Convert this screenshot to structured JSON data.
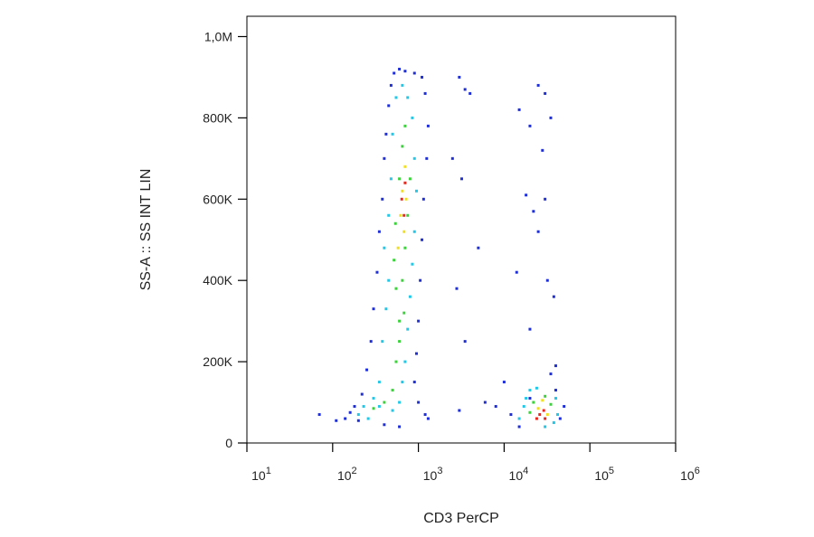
{
  "chart_data": {
    "type": "scatter",
    "xlabel": "CD3 PerCP",
    "ylabel": "SS-A :: SS INT LIN",
    "xscale": "log",
    "xlim": [
      10,
      1000000
    ],
    "ylim": [
      0,
      1050000
    ],
    "xticks": [
      {
        "value": 10,
        "label": "10",
        "exponent": "1"
      },
      {
        "value": 100,
        "label": "10",
        "exponent": "2"
      },
      {
        "value": 1000,
        "label": "10",
        "exponent": "3"
      },
      {
        "value": 10000,
        "label": "10",
        "exponent": "4"
      },
      {
        "value": 100000,
        "label": "10",
        "exponent": "5"
      },
      {
        "value": 1000000,
        "label": "10",
        "exponent": "6"
      }
    ],
    "yticks": [
      0,
      {
        "value": 200000,
        "label": "200K"
      },
      {
        "value": 400000,
        "label": "400K"
      },
      {
        "value": 600000,
        "label": "600K"
      },
      {
        "value": 800000,
        "label": "800K"
      },
      {
        "value": 1000000,
        "label": "1,0M"
      }
    ],
    "series": [
      {
        "color": "#1f2fd8",
        "x": [
          70,
          110,
          140,
          160,
          180,
          200,
          220,
          250,
          280,
          300,
          330,
          350,
          380,
          400,
          420,
          450,
          480,
          520,
          600,
          700,
          900,
          1100,
          1200,
          1300,
          1250,
          1150,
          1100,
          1050,
          1000,
          950,
          900,
          1000,
          1200,
          1300,
          600,
          400,
          3000,
          3500,
          4000,
          2500,
          3200,
          5000,
          2800,
          3500,
          6000,
          3000,
          25000,
          30000,
          15000,
          20000,
          35000,
          28000,
          18000,
          22000,
          30000,
          25000,
          14000,
          32000,
          38000,
          20000,
          40000,
          10000,
          12000,
          45000,
          50000,
          40000,
          15000,
          20000,
          8000,
          35000
        ],
        "y": [
          70000,
          55000,
          60000,
          75000,
          90000,
          55000,
          120000,
          180000,
          250000,
          330000,
          420000,
          520000,
          600000,
          700000,
          760000,
          830000,
          880000,
          910000,
          920000,
          915000,
          910000,
          900000,
          860000,
          780000,
          700000,
          600000,
          500000,
          400000,
          300000,
          220000,
          150000,
          100000,
          70000,
          60000,
          40000,
          45000,
          900000,
          870000,
          860000,
          700000,
          650000,
          480000,
          380000,
          250000,
          100000,
          80000,
          880000,
          860000,
          820000,
          780000,
          800000,
          720000,
          610000,
          570000,
          600000,
          520000,
          420000,
          400000,
          360000,
          280000,
          190000,
          150000,
          70000,
          60000,
          90000,
          130000,
          40000,
          110000,
          90000,
          170000
        ]
      },
      {
        "color": "#22c8e8",
        "x": [
          200,
          230,
          260,
          300,
          350,
          380,
          420,
          450,
          400,
          450,
          480,
          500,
          550,
          650,
          750,
          850,
          900,
          950,
          900,
          850,
          800,
          750,
          700,
          650,
          600,
          500,
          350,
          17000,
          18000,
          20000,
          40000,
          42000,
          38000,
          15000,
          24000,
          30000
        ],
        "y": [
          70000,
          90000,
          60000,
          110000,
          150000,
          250000,
          330000,
          400000,
          480000,
          560000,
          650000,
          760000,
          850000,
          880000,
          850000,
          800000,
          700000,
          620000,
          520000,
          440000,
          360000,
          280000,
          200000,
          150000,
          100000,
          80000,
          90000,
          90000,
          110000,
          130000,
          110000,
          70000,
          50000,
          60000,
          135000,
          40000
        ]
      },
      {
        "color": "#3cd23c",
        "x": [
          300,
          400,
          500,
          550,
          600,
          550,
          520,
          540,
          600,
          650,
          700,
          800,
          750,
          700,
          650,
          680,
          600,
          20000,
          35000,
          30000,
          22000
        ],
        "y": [
          85000,
          100000,
          130000,
          200000,
          300000,
          380000,
          450000,
          540000,
          650000,
          730000,
          780000,
          650000,
          560000,
          480000,
          400000,
          320000,
          250000,
          75000,
          95000,
          115000,
          100000
        ]
      },
      {
        "color": "#f0e020",
        "x": [
          580,
          620,
          650,
          700,
          720,
          680,
          25000,
          32000,
          28000
        ],
        "y": [
          480000,
          560000,
          620000,
          680000,
          600000,
          520000,
          85000,
          70000,
          105000
        ]
      },
      {
        "color": "#e8281c",
        "x": [
          640,
          700,
          680,
          26000,
          29000,
          24000,
          30000
        ],
        "y": [
          600000,
          640000,
          560000,
          70000,
          80000,
          60000,
          60000
        ]
      }
    ]
  }
}
